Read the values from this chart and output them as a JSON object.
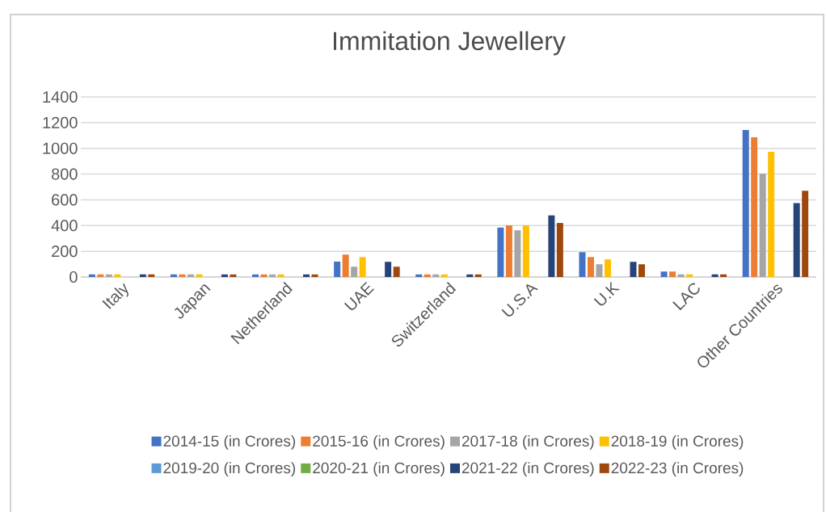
{
  "chart_data": {
    "type": "bar",
    "title": "Immitation Jewellery",
    "categories": [
      "Italy",
      "Japan",
      "Netherland",
      "UAE",
      "Switzerland",
      "U.S.A",
      "U.K",
      "LAC",
      "Other Countries"
    ],
    "series": [
      {
        "name": "2014-15 (in Crores)",
        "color": "#4472c4",
        "values": [
          20,
          20,
          20,
          120,
          20,
          384,
          193,
          42,
          1143
        ]
      },
      {
        "name": "2015-16 (in Crores)",
        "color": "#ed7d31",
        "values": [
          20,
          20,
          20,
          174,
          20,
          401,
          155,
          42,
          1086
        ]
      },
      {
        "name": "2017-18 (in Crores)",
        "color": "#a5a5a5",
        "values": [
          20,
          20,
          20,
          80,
          20,
          363,
          99,
          20,
          803
        ]
      },
      {
        "name": "2018-19 (in Crores)",
        "color": "#ffc000",
        "values": [
          20,
          20,
          20,
          155,
          20,
          401,
          137,
          20,
          973
        ]
      },
      {
        "name": "2019-20 (in Crores)",
        "color": "#5b9bd5",
        "values": [
          null,
          null,
          null,
          null,
          null,
          null,
          null,
          null,
          null
        ]
      },
      {
        "name": "2020-21 (in Crores)",
        "color": "#70ad47",
        "values": [
          null,
          null,
          null,
          null,
          null,
          null,
          null,
          null,
          null
        ]
      },
      {
        "name": "2021-22 (in Crores)",
        "color": "#264478",
        "values": [
          20,
          20,
          20,
          118,
          20,
          479,
          118,
          20,
          574
        ]
      },
      {
        "name": "2022-23 (in Crores)",
        "color": "#9e480e",
        "values": [
          20,
          20,
          20,
          80,
          20,
          420,
          99,
          20,
          670
        ]
      }
    ],
    "ylim": [
      0,
      1400
    ],
    "yticks": [
      0,
      200,
      400,
      600,
      800,
      1000,
      1200,
      1400
    ],
    "grid": "y",
    "legend": "bottom"
  }
}
